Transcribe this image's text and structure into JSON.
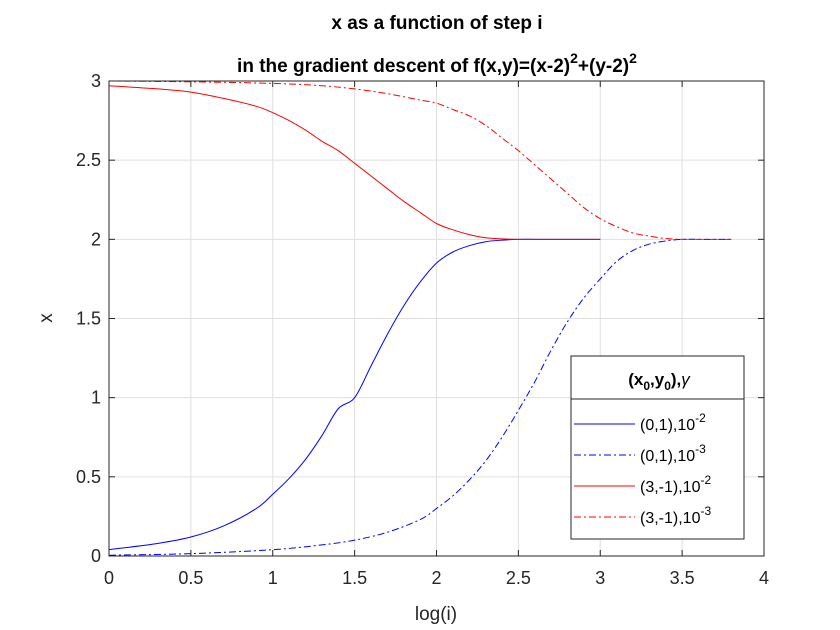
{
  "chart_data": {
    "type": "line",
    "title_line1": "x as a function of step i",
    "title_line2": {
      "prefix": "in the gradient descent of f(x,y)=(x-2)",
      "sup1": "2",
      "mid": "+(y-2)",
      "sup2": "2"
    },
    "xlabel": "log(i)",
    "ylabel": "x",
    "xlim": [
      0,
      4
    ],
    "ylim": [
      0,
      3
    ],
    "xticks": [
      0,
      0.5,
      1,
      1.5,
      2,
      2.5,
      3,
      3.5,
      4
    ],
    "xtick_labels": [
      "0",
      "0.5",
      "1",
      "1.5",
      "2",
      "2.5",
      "3",
      "3.5",
      "4"
    ],
    "yticks": [
      0,
      0.5,
      1,
      1.5,
      2,
      2.5,
      3
    ],
    "ytick_labels": [
      "0",
      "0.5",
      "1",
      "1.5",
      "2",
      "2.5",
      "3"
    ],
    "grid": true,
    "legend_location": "bottom-right",
    "legend_title": {
      "p1": "(x",
      "s1": "0",
      "p2": ",y",
      "s2": "0",
      "p3": "),",
      "gamma": "γ"
    },
    "series": [
      {
        "label_base": "(0,1),10",
        "label_exp": "-2",
        "color": "#0000ff",
        "dash": "solid",
        "x": [
          0,
          0.3,
          0.5,
          0.7,
          0.9,
          1.0,
          1.1,
          1.2,
          1.3,
          1.4,
          1.5,
          1.6,
          1.7,
          1.8,
          1.9,
          2.0,
          2.1,
          2.2,
          2.3,
          2.4,
          2.5,
          2.6,
          2.7,
          2.8,
          2.9,
          3.0
        ],
        "y": [
          0.04,
          0.08,
          0.12,
          0.19,
          0.3,
          0.39,
          0.49,
          0.61,
          0.76,
          0.93,
          1.0,
          1.2,
          1.4,
          1.58,
          1.73,
          1.85,
          1.92,
          1.96,
          1.985,
          1.995,
          2.0,
          2.0,
          2.0,
          2.0,
          2.0,
          2.0
        ]
      },
      {
        "label_base": "(0,1),10",
        "label_exp": "-3",
        "color": "#0000ff",
        "dash": "dashdot",
        "x": [
          0,
          0.5,
          1.0,
          1.3,
          1.5,
          1.7,
          1.9,
          2.0,
          2.1,
          2.2,
          2.3,
          2.4,
          2.5,
          2.6,
          2.7,
          2.8,
          2.9,
          3.0,
          3.1,
          3.2,
          3.3,
          3.4,
          3.5,
          3.6,
          3.7,
          3.8
        ],
        "y": [
          0.005,
          0.015,
          0.04,
          0.07,
          0.1,
          0.15,
          0.23,
          0.3,
          0.38,
          0.48,
          0.6,
          0.75,
          0.92,
          1.1,
          1.3,
          1.48,
          1.63,
          1.75,
          1.86,
          1.93,
          1.97,
          1.99,
          2.0,
          2.0,
          2.0,
          2.0
        ]
      },
      {
        "label_base": "(3,-1),10",
        "label_exp": "-2",
        "color": "#ff0000",
        "dash": "solid",
        "x": [
          0,
          0.3,
          0.5,
          0.7,
          0.9,
          1.0,
          1.1,
          1.2,
          1.3,
          1.4,
          1.5,
          1.6,
          1.7,
          1.8,
          1.9,
          2.0,
          2.1,
          2.2,
          2.3,
          2.4,
          2.5,
          2.6,
          2.7,
          2.8,
          2.9,
          3.0
        ],
        "y": [
          2.97,
          2.95,
          2.93,
          2.89,
          2.84,
          2.8,
          2.75,
          2.69,
          2.62,
          2.56,
          2.48,
          2.4,
          2.32,
          2.24,
          2.17,
          2.1,
          2.06,
          2.03,
          2.01,
          2.003,
          2.0,
          2.0,
          2.0,
          2.0,
          2.0,
          2.0
        ]
      },
      {
        "label_base": "(3,-1),10",
        "label_exp": "-3",
        "color": "#ff0000",
        "dash": "dashdot",
        "x": [
          0,
          0.5,
          1.0,
          1.3,
          1.5,
          1.7,
          1.9,
          2.0,
          2.1,
          2.2,
          2.3,
          2.4,
          2.5,
          2.6,
          2.7,
          2.8,
          2.9,
          3.0,
          3.1,
          3.2,
          3.3,
          3.4,
          3.5,
          3.6,
          3.7,
          3.8
        ],
        "y": [
          3.0,
          2.995,
          2.985,
          2.97,
          2.95,
          2.92,
          2.88,
          2.86,
          2.82,
          2.78,
          2.72,
          2.64,
          2.56,
          2.47,
          2.38,
          2.29,
          2.2,
          2.13,
          2.08,
          2.04,
          2.02,
          2.005,
          2.0,
          2.0,
          2.0,
          2.0
        ]
      }
    ]
  }
}
